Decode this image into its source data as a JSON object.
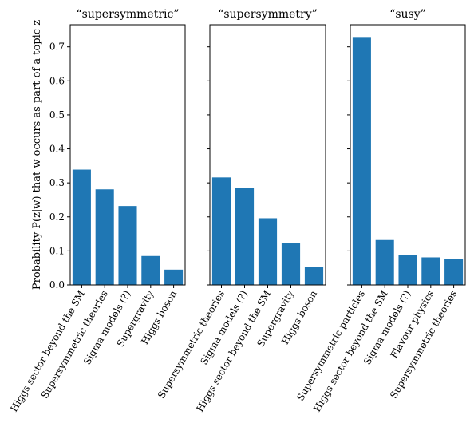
{
  "chart_data": [
    {
      "type": "bar",
      "title": "“supersymmetric”",
      "categories": [
        "Higgs sector beyond the SM",
        "Supersymmetric theories",
        "Sigma models (?)",
        "Supergravity",
        "Higgs boson"
      ],
      "values": [
        0.339,
        0.281,
        0.232,
        0.085,
        0.045
      ],
      "ylabel": "Probability P(z|w) that w occurs as part of a topic z",
      "ylim": [
        0,
        0.765
      ],
      "yticks": [
        "0.0",
        "0.1",
        "0.2",
        "0.3",
        "0.4",
        "0.5",
        "0.6",
        "0.7"
      ],
      "color": "#1f77b4"
    },
    {
      "type": "bar",
      "title": "“supersymmetry”",
      "categories": [
        "Supersymmetric theories",
        "Sigma models (?)",
        "Higgs sector beyond the SM",
        "Supergravity",
        "Higgs boson"
      ],
      "values": [
        0.316,
        0.285,
        0.196,
        0.122,
        0.052
      ],
      "ylim": [
        0,
        0.765
      ],
      "color": "#1f77b4"
    },
    {
      "type": "bar",
      "title": "“susy”",
      "categories": [
        "Supersymmetric particles",
        "Higgs sector beyond the SM",
        "Sigma models (?)",
        "Flavour physics",
        "Supersymmetric theories"
      ],
      "values": [
        0.729,
        0.132,
        0.089,
        0.081,
        0.076
      ],
      "ylim": [
        0,
        0.765
      ],
      "color": "#1f77b4"
    }
  ]
}
